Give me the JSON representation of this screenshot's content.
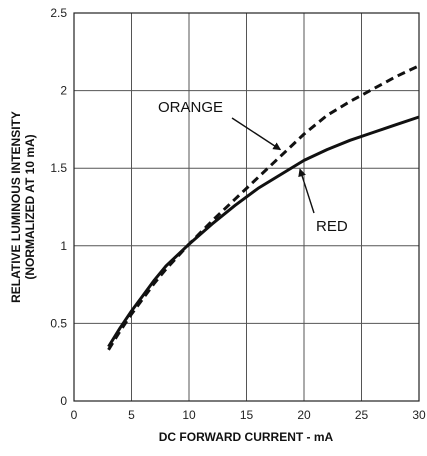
{
  "chart_data": {
    "type": "line",
    "xlabel": "DC FORWARD CURRENT - mA",
    "ylabel_line1": "RELATIVE LUMINOUS INTENSITY",
    "ylabel_line2": "(NORMALIZED AT 10 mA)",
    "xlim": [
      0,
      30
    ],
    "ylim": [
      0,
      2.5
    ],
    "xticks": [
      0,
      5,
      10,
      15,
      20,
      25,
      30
    ],
    "yticks": [
      0,
      0.5,
      1,
      1.5,
      2,
      2.5
    ],
    "xtick_labels": [
      "0",
      "5",
      "10",
      "15",
      "20",
      "25",
      "30"
    ],
    "ytick_labels": [
      "0",
      "0.5",
      "1",
      "1.5",
      "2",
      "2.5"
    ],
    "grid": true,
    "series": [
      {
        "name": "ORANGE",
        "style": "dashed",
        "color": "#111111",
        "x": [
          3,
          4,
          5,
          6,
          7,
          8,
          9,
          10,
          12,
          14,
          16,
          18,
          20,
          22,
          24,
          26,
          28,
          30
        ],
        "y": [
          0.33,
          0.45,
          0.56,
          0.66,
          0.76,
          0.85,
          0.93,
          1.01,
          1.16,
          1.3,
          1.44,
          1.58,
          1.72,
          1.84,
          1.93,
          2.01,
          2.09,
          2.16
        ]
      },
      {
        "name": "RED",
        "style": "solid",
        "color": "#111111",
        "x": [
          3,
          4,
          5,
          6,
          7,
          8,
          9,
          10,
          12,
          14,
          16,
          18,
          20,
          22,
          24,
          26,
          28,
          30
        ],
        "y": [
          0.35,
          0.47,
          0.58,
          0.68,
          0.78,
          0.87,
          0.94,
          1.01,
          1.14,
          1.26,
          1.37,
          1.46,
          1.55,
          1.62,
          1.68,
          1.73,
          1.78,
          1.83
        ]
      }
    ],
    "annotations": [
      {
        "text": "ORANGE",
        "series": "ORANGE"
      },
      {
        "text": "RED",
        "series": "RED"
      }
    ]
  }
}
